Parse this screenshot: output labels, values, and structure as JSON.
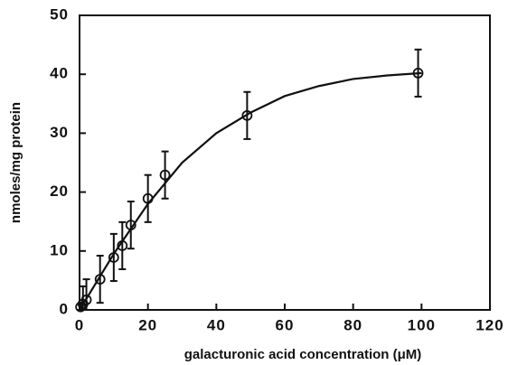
{
  "chart_data": {
    "type": "scatter",
    "x_label": "galacturonic acid concentration (μM)",
    "y_label": "nmoles/mg protein",
    "xlim": [
      0,
      120
    ],
    "xticks": [
      0,
      20,
      40,
      60,
      80,
      100,
      120
    ],
    "ylim": [
      0,
      50
    ],
    "yticks": [
      0,
      10,
      20,
      30,
      40,
      50
    ],
    "color": "#111111",
    "points": {
      "x": [
        0.3,
        1,
        2,
        6,
        10,
        12.5,
        15,
        20,
        25,
        49,
        99
      ],
      "values": [
        0.5,
        1,
        1.7,
        5.2,
        8.9,
        10.9,
        14.4,
        18.9,
        22.9,
        33,
        40.2
      ],
      "errors": [
        0.5,
        3,
        3.5,
        4,
        4,
        4,
        4,
        4,
        4,
        4,
        4
      ]
    },
    "fit": {
      "x": [
        0,
        10,
        20,
        30,
        40,
        50,
        60,
        70,
        80,
        90,
        100
      ],
      "values": [
        0,
        9.5,
        18,
        25,
        30,
        33.5,
        36.3,
        38,
        39.2,
        39.8,
        40.2
      ]
    }
  }
}
